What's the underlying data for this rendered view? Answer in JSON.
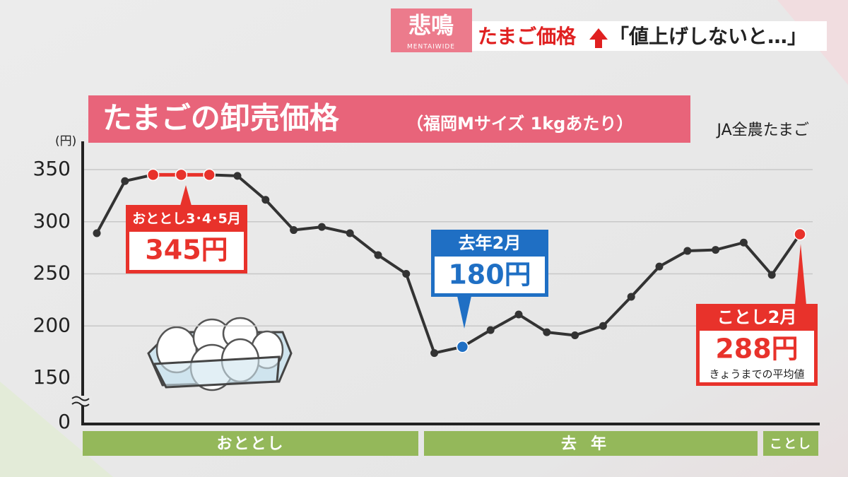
{
  "header": {
    "tag": "悲鳴",
    "show": "MENTAIWIDE",
    "topic": "たまご価格",
    "quote": "「値上げしないと…」"
  },
  "chart_data": {
    "type": "line",
    "title": "たまごの卸売価格",
    "subtitle": "（福岡Mサイズ 1kgあたり）",
    "source": "JA全農たまご",
    "y_unit": "(円)",
    "categories": [
      null,
      null,
      null,
      null,
      null,
      null,
      null,
      null,
      null,
      null,
      null,
      null,
      null,
      null,
      null,
      null,
      null,
      null,
      null,
      null,
      null,
      null,
      null,
      null,
      null,
      null
    ],
    "periods": [
      "おととし",
      "去年",
      "ことし"
    ],
    "series": [
      {
        "color": "#333333",
        "values": [
          289,
          339,
          345,
          345,
          345,
          344,
          321,
          292,
          295,
          289,
          268,
          250,
          174,
          180,
          196,
          211,
          194,
          191,
          200,
          228,
          257,
          272,
          273,
          280,
          249,
          288
        ]
      }
    ],
    "ylim": [
      0,
      360
    ],
    "yticks": [
      0,
      150,
      200,
      250,
      300,
      350
    ],
    "axis_break": true,
    "grid": true,
    "annotations": [
      {
        "text": "おととし3･4･5月",
        "value_label": "345円",
        "color": "#e8322b"
      },
      {
        "text": "去年2月",
        "value_label": "180円",
        "color": "#1f6fc4"
      },
      {
        "text": "ことし2月",
        "value_label": "288円",
        "note": "きょうまでの平均値",
        "color": "#e8322b"
      }
    ]
  }
}
